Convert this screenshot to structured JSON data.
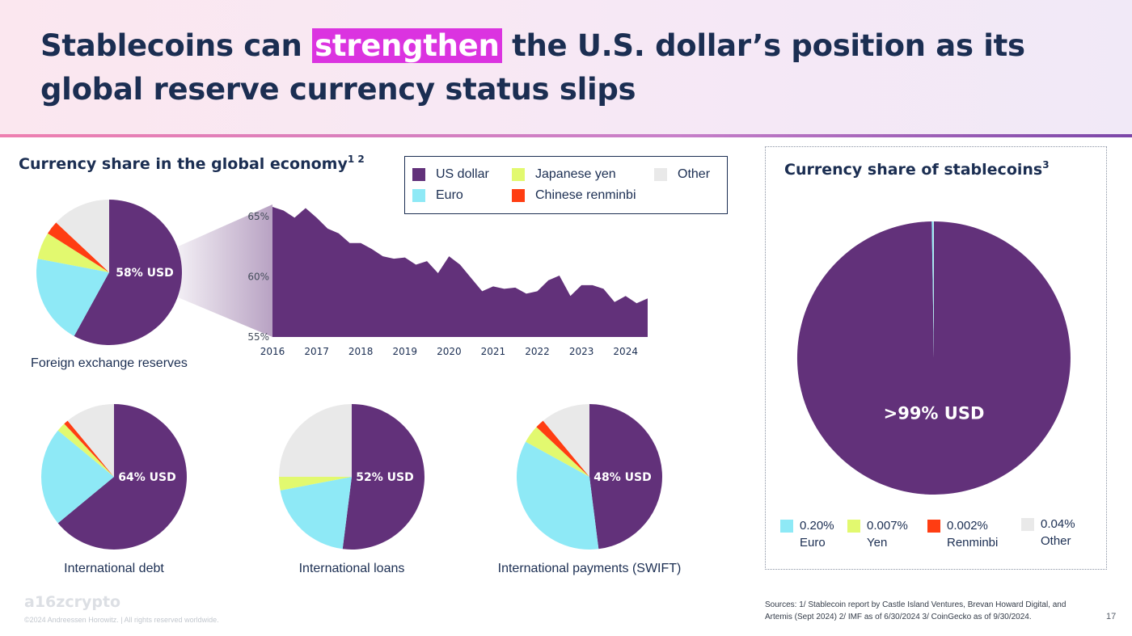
{
  "title": {
    "before": "Stablecoins can ",
    "highlight": "strengthen",
    "after": " the U.S. dollar’s position as its global reserve currency status slips"
  },
  "colors": {
    "usd": "#62317a",
    "euro": "#8ee9f6",
    "yen": "#e2f96f",
    "renminbi": "#ff3d12",
    "other": "#e9e9e9",
    "title_highlight": "#db33e0",
    "navy": "#1b2e52"
  },
  "left_section": {
    "heading": "Currency share in the global economy",
    "heading_sup": "1 2"
  },
  "legend": {
    "items": [
      {
        "label": "US dollar",
        "color": "#62317a"
      },
      {
        "label": "Japanese yen",
        "color": "#e2f96f"
      },
      {
        "label": "Other",
        "color": "#e9e9e9"
      },
      {
        "label": "Euro",
        "color": "#8ee9f6"
      },
      {
        "label": "Chinese renminbi",
        "color": "#ff3d12"
      }
    ]
  },
  "right_section": {
    "heading": "Currency share of stablecoins",
    "heading_sup": "3"
  },
  "stable_legend": [
    {
      "value": "0.20%",
      "label": "Euro",
      "color": "#8ee9f6"
    },
    {
      "value": "0.007%",
      "label": "Yen",
      "color": "#e2f96f"
    },
    {
      "value": "0.002%",
      "label": "Renminbi",
      "color": "#ff3d12"
    },
    {
      "value": "0.04%",
      "label": "Other",
      "color": "#e9e9e9"
    }
  ],
  "footer": {
    "brand": "a16zcrypto",
    "copyright": "©2024 Andreessen Horowitz. |  All rights reserved worldwide.",
    "sources": "Sources: 1/ Stablecoin report by Castle Island Ventures, Brevan Howard Digital, and Artemis (Sept 2024) 2/ IMF as of 6/30/2024 3/ CoinGecko as of 9/30/2024.",
    "page": "17"
  },
  "chart_data": [
    {
      "type": "pie",
      "caption": "Foreign exchange reserves",
      "center_label": "58% USD",
      "slices": [
        {
          "name": "US dollar",
          "value": 58
        },
        {
          "name": "Euro",
          "value": 20
        },
        {
          "name": "Japanese yen",
          "value": 6
        },
        {
          "name": "Chinese renminbi",
          "value": 3
        },
        {
          "name": "Other",
          "value": 13
        }
      ]
    },
    {
      "type": "area",
      "series_name": "US dollar",
      "ylim": [
        55,
        66
      ],
      "yticks": [
        "55%",
        "60%",
        "65%"
      ],
      "xticks": [
        "2016",
        "2017",
        "2018",
        "2019",
        "2020",
        "2021",
        "2022",
        "2023",
        "2024"
      ],
      "x": [
        2016.0,
        2016.25,
        2016.5,
        2016.75,
        2017.0,
        2017.25,
        2017.5,
        2017.75,
        2018.0,
        2018.25,
        2018.5,
        2018.75,
        2019.0,
        2019.25,
        2019.5,
        2019.75,
        2020.0,
        2020.25,
        2020.5,
        2020.75,
        2021.0,
        2021.25,
        2021.5,
        2021.75,
        2022.0,
        2022.25,
        2022.5,
        2022.75,
        2023.0,
        2023.25,
        2023.5,
        2023.75,
        2024.0,
        2024.25,
        2024.5
      ],
      "values": [
        65.8,
        65.5,
        64.9,
        65.7,
        64.9,
        64.0,
        63.6,
        62.8,
        62.8,
        62.3,
        61.7,
        61.5,
        61.6,
        61.0,
        61.3,
        60.3,
        61.7,
        61.0,
        59.9,
        58.8,
        59.2,
        59.0,
        59.1,
        58.6,
        58.8,
        59.7,
        60.1,
        58.4,
        59.3,
        59.3,
        59.0,
        57.9,
        58.4,
        57.8,
        58.2
      ]
    },
    {
      "type": "pie",
      "caption": "International debt",
      "center_label": "64% USD",
      "slices": [
        {
          "name": "US dollar",
          "value": 64
        },
        {
          "name": "Euro",
          "value": 22
        },
        {
          "name": "Japanese yen",
          "value": 2
        },
        {
          "name": "Chinese renminbi",
          "value": 1
        },
        {
          "name": "Other",
          "value": 11
        }
      ]
    },
    {
      "type": "pie",
      "caption": "International loans",
      "center_label": "52% USD",
      "slices": [
        {
          "name": "US dollar",
          "value": 52
        },
        {
          "name": "Euro",
          "value": 20
        },
        {
          "name": "Japanese yen",
          "value": 3
        },
        {
          "name": "Chinese renminbi",
          "value": 0
        },
        {
          "name": "Other",
          "value": 25
        }
      ]
    },
    {
      "type": "pie",
      "caption": "International payments (SWIFT)",
      "center_label": "48% USD",
      "slices": [
        {
          "name": "US dollar",
          "value": 48
        },
        {
          "name": "Euro",
          "value": 35
        },
        {
          "name": "Japanese yen",
          "value": 4
        },
        {
          "name": "Chinese renminbi",
          "value": 2
        },
        {
          "name": "Other",
          "value": 11
        }
      ]
    },
    {
      "type": "pie",
      "caption": "Currency share of stablecoins",
      "center_label": ">99% USD",
      "slices": [
        {
          "name": "US dollar",
          "value": 99.75
        },
        {
          "name": "Euro",
          "value": 0.2
        },
        {
          "name": "Japanese yen",
          "value": 0.007
        },
        {
          "name": "Chinese renminbi",
          "value": 0.002
        },
        {
          "name": "Other",
          "value": 0.04
        }
      ]
    }
  ]
}
